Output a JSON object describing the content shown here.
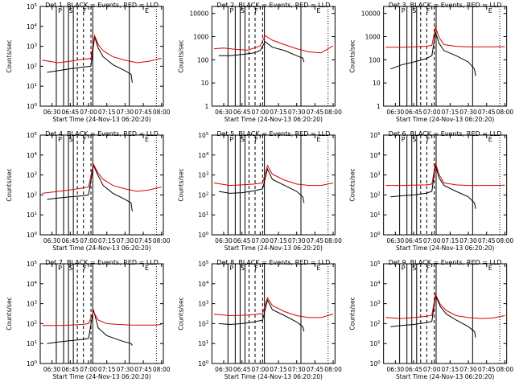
{
  "figure": {
    "xlabel": "Start Time (24-Nov-13 06:20:20)",
    "ylabel": "Counts/sec",
    "x_tick_labels": [
      "06:30",
      "06:45",
      "07:00",
      "07:15",
      "07:30",
      "07:45",
      "08:00"
    ],
    "x_tick_minutes": [
      30,
      45,
      60,
      75,
      90,
      105,
      120
    ],
    "x_range_minutes": [
      20.3,
      121.5
    ],
    "marker_letters": [
      "P",
      "S",
      "F",
      "E"
    ],
    "solid_line_minutes": [
      33.5,
      39.5,
      43.5,
      47.5,
      63.5,
      93.5
    ],
    "dashed_line_minutes": [
      50.8,
      55.8,
      62
    ],
    "dotted_line_minutes": [
      115.8
    ],
    "colors": {
      "black_series": "#000000",
      "red_series": "#dd0000",
      "axes": "#000000"
    }
  },
  "chart_data": [
    {
      "type": "line",
      "title": "Det 1, BLACK = Events, RED = LLD",
      "yscale": "log",
      "ylim": [
        1,
        100000
      ],
      "y_tick_labels": [
        "10^0",
        "10^1",
        "10^2",
        "10^3",
        "10^4",
        "10^5"
      ],
      "y_tick_values": [
        1,
        10,
        100,
        1000,
        10000,
        100000
      ],
      "series": [
        {
          "color": "black",
          "x": [
            26,
            35,
            45,
            55,
            62,
            65,
            68,
            72,
            80,
            90,
            95,
            96
          ],
          "y": [
            50,
            60,
            75,
            90,
            100,
            3000,
            800,
            300,
            120,
            60,
            40,
            15
          ]
        },
        {
          "color": "red",
          "x": [
            22,
            35,
            45,
            55,
            62,
            65,
            68,
            72,
            80,
            90,
            100,
            110,
            120
          ],
          "y": [
            200,
            150,
            180,
            220,
            250,
            3500,
            1200,
            600,
            300,
            200,
            150,
            180,
            250
          ]
        }
      ]
    },
    {
      "type": "line",
      "title": "Det 2, BLACK = Events, RED = LLD",
      "yscale": "log",
      "ylim": [
        1,
        20000
      ],
      "y_tick_labels": [
        "1",
        "10",
        "100",
        "1000",
        "10000"
      ],
      "y_tick_values": [
        1,
        10,
        100,
        1000,
        10000
      ],
      "series": [
        {
          "color": "black",
          "x": [
            26,
            35,
            45,
            55,
            60,
            64,
            70,
            80,
            90,
            95,
            96
          ],
          "y": [
            150,
            150,
            170,
            200,
            250,
            600,
            350,
            250,
            150,
            120,
            80
          ]
        },
        {
          "color": "red",
          "x": [
            22,
            30,
            40,
            50,
            60,
            64,
            70,
            80,
            90,
            100,
            110,
            120
          ],
          "y": [
            300,
            320,
            280,
            260,
            400,
            1100,
            700,
            450,
            300,
            220,
            200,
            400
          ]
        }
      ]
    },
    {
      "type": "line",
      "title": "Det 3, BLACK = Events, RED = LLD",
      "yscale": "log",
      "ylim": [
        1,
        20000
      ],
      "y_tick_labels": [
        "1",
        "10",
        "100",
        "1000",
        "10000"
      ],
      "y_tick_values": [
        1,
        10,
        100,
        1000,
        10000
      ],
      "series": [
        {
          "color": "black",
          "x": [
            26,
            35,
            45,
            55,
            60,
            63,
            66,
            70,
            80,
            90,
            95,
            96
          ],
          "y": [
            40,
            60,
            80,
            110,
            150,
            1500,
            500,
            250,
            150,
            80,
            40,
            20
          ]
        },
        {
          "color": "red",
          "x": [
            22,
            35,
            45,
            55,
            60,
            63,
            66,
            70,
            80,
            90,
            100,
            110,
            120
          ],
          "y": [
            350,
            350,
            360,
            380,
            420,
            2500,
            900,
            450,
            380,
            360,
            360,
            360,
            370
          ]
        }
      ]
    },
    {
      "type": "line",
      "title": "Det 4, BLACK = Events, RED = LLD",
      "yscale": "log",
      "ylim": [
        1,
        100000
      ],
      "y_tick_labels": [
        "10^0",
        "10^1",
        "10^2",
        "10^3",
        "10^4",
        "10^5"
      ],
      "y_tick_values": [
        1,
        10,
        100,
        1000,
        10000,
        100000
      ],
      "series": [
        {
          "color": "black",
          "x": [
            26,
            35,
            45,
            55,
            60,
            64,
            68,
            72,
            80,
            90,
            95,
            96
          ],
          "y": [
            60,
            70,
            80,
            90,
            100,
            3000,
            900,
            300,
            120,
            60,
            40,
            15
          ]
        },
        {
          "color": "red",
          "x": [
            22,
            35,
            45,
            55,
            60,
            64,
            68,
            72,
            80,
            90,
            100,
            110,
            120
          ],
          "y": [
            120,
            150,
            180,
            220,
            250,
            3500,
            1200,
            600,
            300,
            200,
            150,
            180,
            250
          ]
        }
      ]
    },
    {
      "type": "line",
      "title": "Det 5, BLACK = Events, RED = LLD",
      "yscale": "log",
      "ylim": [
        1,
        100000
      ],
      "y_tick_labels": [
        "10^0",
        "10^1",
        "10^2",
        "10^3",
        "10^4",
        "10^5"
      ],
      "y_tick_values": [
        1,
        10,
        100,
        1000,
        10000,
        100000
      ],
      "series": [
        {
          "color": "black",
          "x": [
            26,
            35,
            45,
            55,
            62,
            66,
            70,
            80,
            90,
            95,
            96
          ],
          "y": [
            150,
            120,
            130,
            160,
            200,
            2000,
            600,
            300,
            150,
            80,
            40
          ]
        },
        {
          "color": "red",
          "x": [
            22,
            35,
            45,
            55,
            62,
            66,
            70,
            80,
            90,
            100,
            110,
            120
          ],
          "y": [
            400,
            300,
            320,
            350,
            400,
            3000,
            1100,
            550,
            350,
            300,
            300,
            400
          ]
        }
      ]
    },
    {
      "type": "line",
      "title": "Det 6, BLACK = Events, RED = LLD",
      "yscale": "log",
      "ylim": [
        1,
        100000
      ],
      "y_tick_labels": [
        "10^0",
        "10^1",
        "10^2",
        "10^3",
        "10^4",
        "10^5"
      ],
      "y_tick_values": [
        1,
        10,
        100,
        1000,
        10000,
        100000
      ],
      "series": [
        {
          "color": "black",
          "x": [
            26,
            35,
            45,
            55,
            60,
            63,
            66,
            70,
            80,
            90,
            95,
            96
          ],
          "y": [
            80,
            90,
            100,
            120,
            150,
            3000,
            700,
            300,
            150,
            80,
            40,
            20
          ]
        },
        {
          "color": "red",
          "x": [
            22,
            35,
            45,
            55,
            60,
            63,
            66,
            70,
            80,
            90,
            100,
            110,
            120
          ],
          "y": [
            300,
            300,
            310,
            320,
            350,
            4000,
            1000,
            400,
            320,
            300,
            300,
            300,
            310
          ]
        }
      ]
    },
    {
      "type": "line",
      "title": "Det 7, BLACK = Events, RED = LLD",
      "yscale": "log",
      "ylim": [
        1,
        100000
      ],
      "y_tick_labels": [
        "10^0",
        "10^1",
        "10^2",
        "10^3",
        "10^4",
        "10^5"
      ],
      "y_tick_values": [
        1,
        10,
        100,
        1000,
        10000,
        100000
      ],
      "series": [
        {
          "color": "black",
          "x": [
            26,
            35,
            45,
            55,
            60,
            64,
            68,
            75,
            85,
            90,
            95,
            96
          ],
          "y": [
            10,
            12,
            14,
            16,
            18,
            500,
            60,
            25,
            15,
            12,
            10,
            8
          ]
        },
        {
          "color": "red",
          "x": [
            22,
            35,
            45,
            55,
            60,
            64,
            68,
            75,
            85,
            95,
            105,
            115,
            120
          ],
          "y": [
            80,
            80,
            85,
            90,
            100,
            400,
            150,
            100,
            90,
            85,
            85,
            85,
            90
          ]
        }
      ]
    },
    {
      "type": "line",
      "title": "Det 8, BLACK = Events, RED = LLD",
      "yscale": "log",
      "ylim": [
        1,
        100000
      ],
      "y_tick_labels": [
        "10^0",
        "10^1",
        "10^2",
        "10^3",
        "10^4",
        "10^5"
      ],
      "y_tick_values": [
        1,
        10,
        100,
        1000,
        10000,
        100000
      ],
      "series": [
        {
          "color": "black",
          "x": [
            26,
            35,
            45,
            55,
            62,
            66,
            70,
            80,
            90,
            95,
            96
          ],
          "y": [
            100,
            90,
            100,
            120,
            150,
            1500,
            500,
            250,
            120,
            70,
            40
          ]
        },
        {
          "color": "red",
          "x": [
            22,
            35,
            45,
            55,
            62,
            66,
            70,
            80,
            90,
            100,
            110,
            120
          ],
          "y": [
            300,
            250,
            260,
            280,
            320,
            2000,
            800,
            400,
            250,
            200,
            200,
            300
          ]
        }
      ]
    },
    {
      "type": "line",
      "title": "Det 9, BLACK = Events, RED = LLD",
      "yscale": "log",
      "ylim": [
        1,
        100000
      ],
      "y_tick_labels": [
        "10^0",
        "10^1",
        "10^2",
        "10^3",
        "10^4",
        "10^5"
      ],
      "y_tick_values": [
        1,
        10,
        100,
        1000,
        10000,
        100000
      ],
      "series": [
        {
          "color": "black",
          "x": [
            26,
            35,
            45,
            55,
            60,
            63,
            67,
            72,
            80,
            90,
            95,
            96
          ],
          "y": [
            70,
            80,
            90,
            110,
            130,
            2500,
            700,
            300,
            150,
            70,
            40,
            20
          ]
        },
        {
          "color": "red",
          "x": [
            22,
            35,
            45,
            55,
            60,
            63,
            67,
            72,
            80,
            90,
            100,
            110,
            120
          ],
          "y": [
            200,
            180,
            200,
            230,
            260,
            3000,
            900,
            450,
            250,
            200,
            180,
            190,
            250
          ]
        }
      ]
    }
  ]
}
